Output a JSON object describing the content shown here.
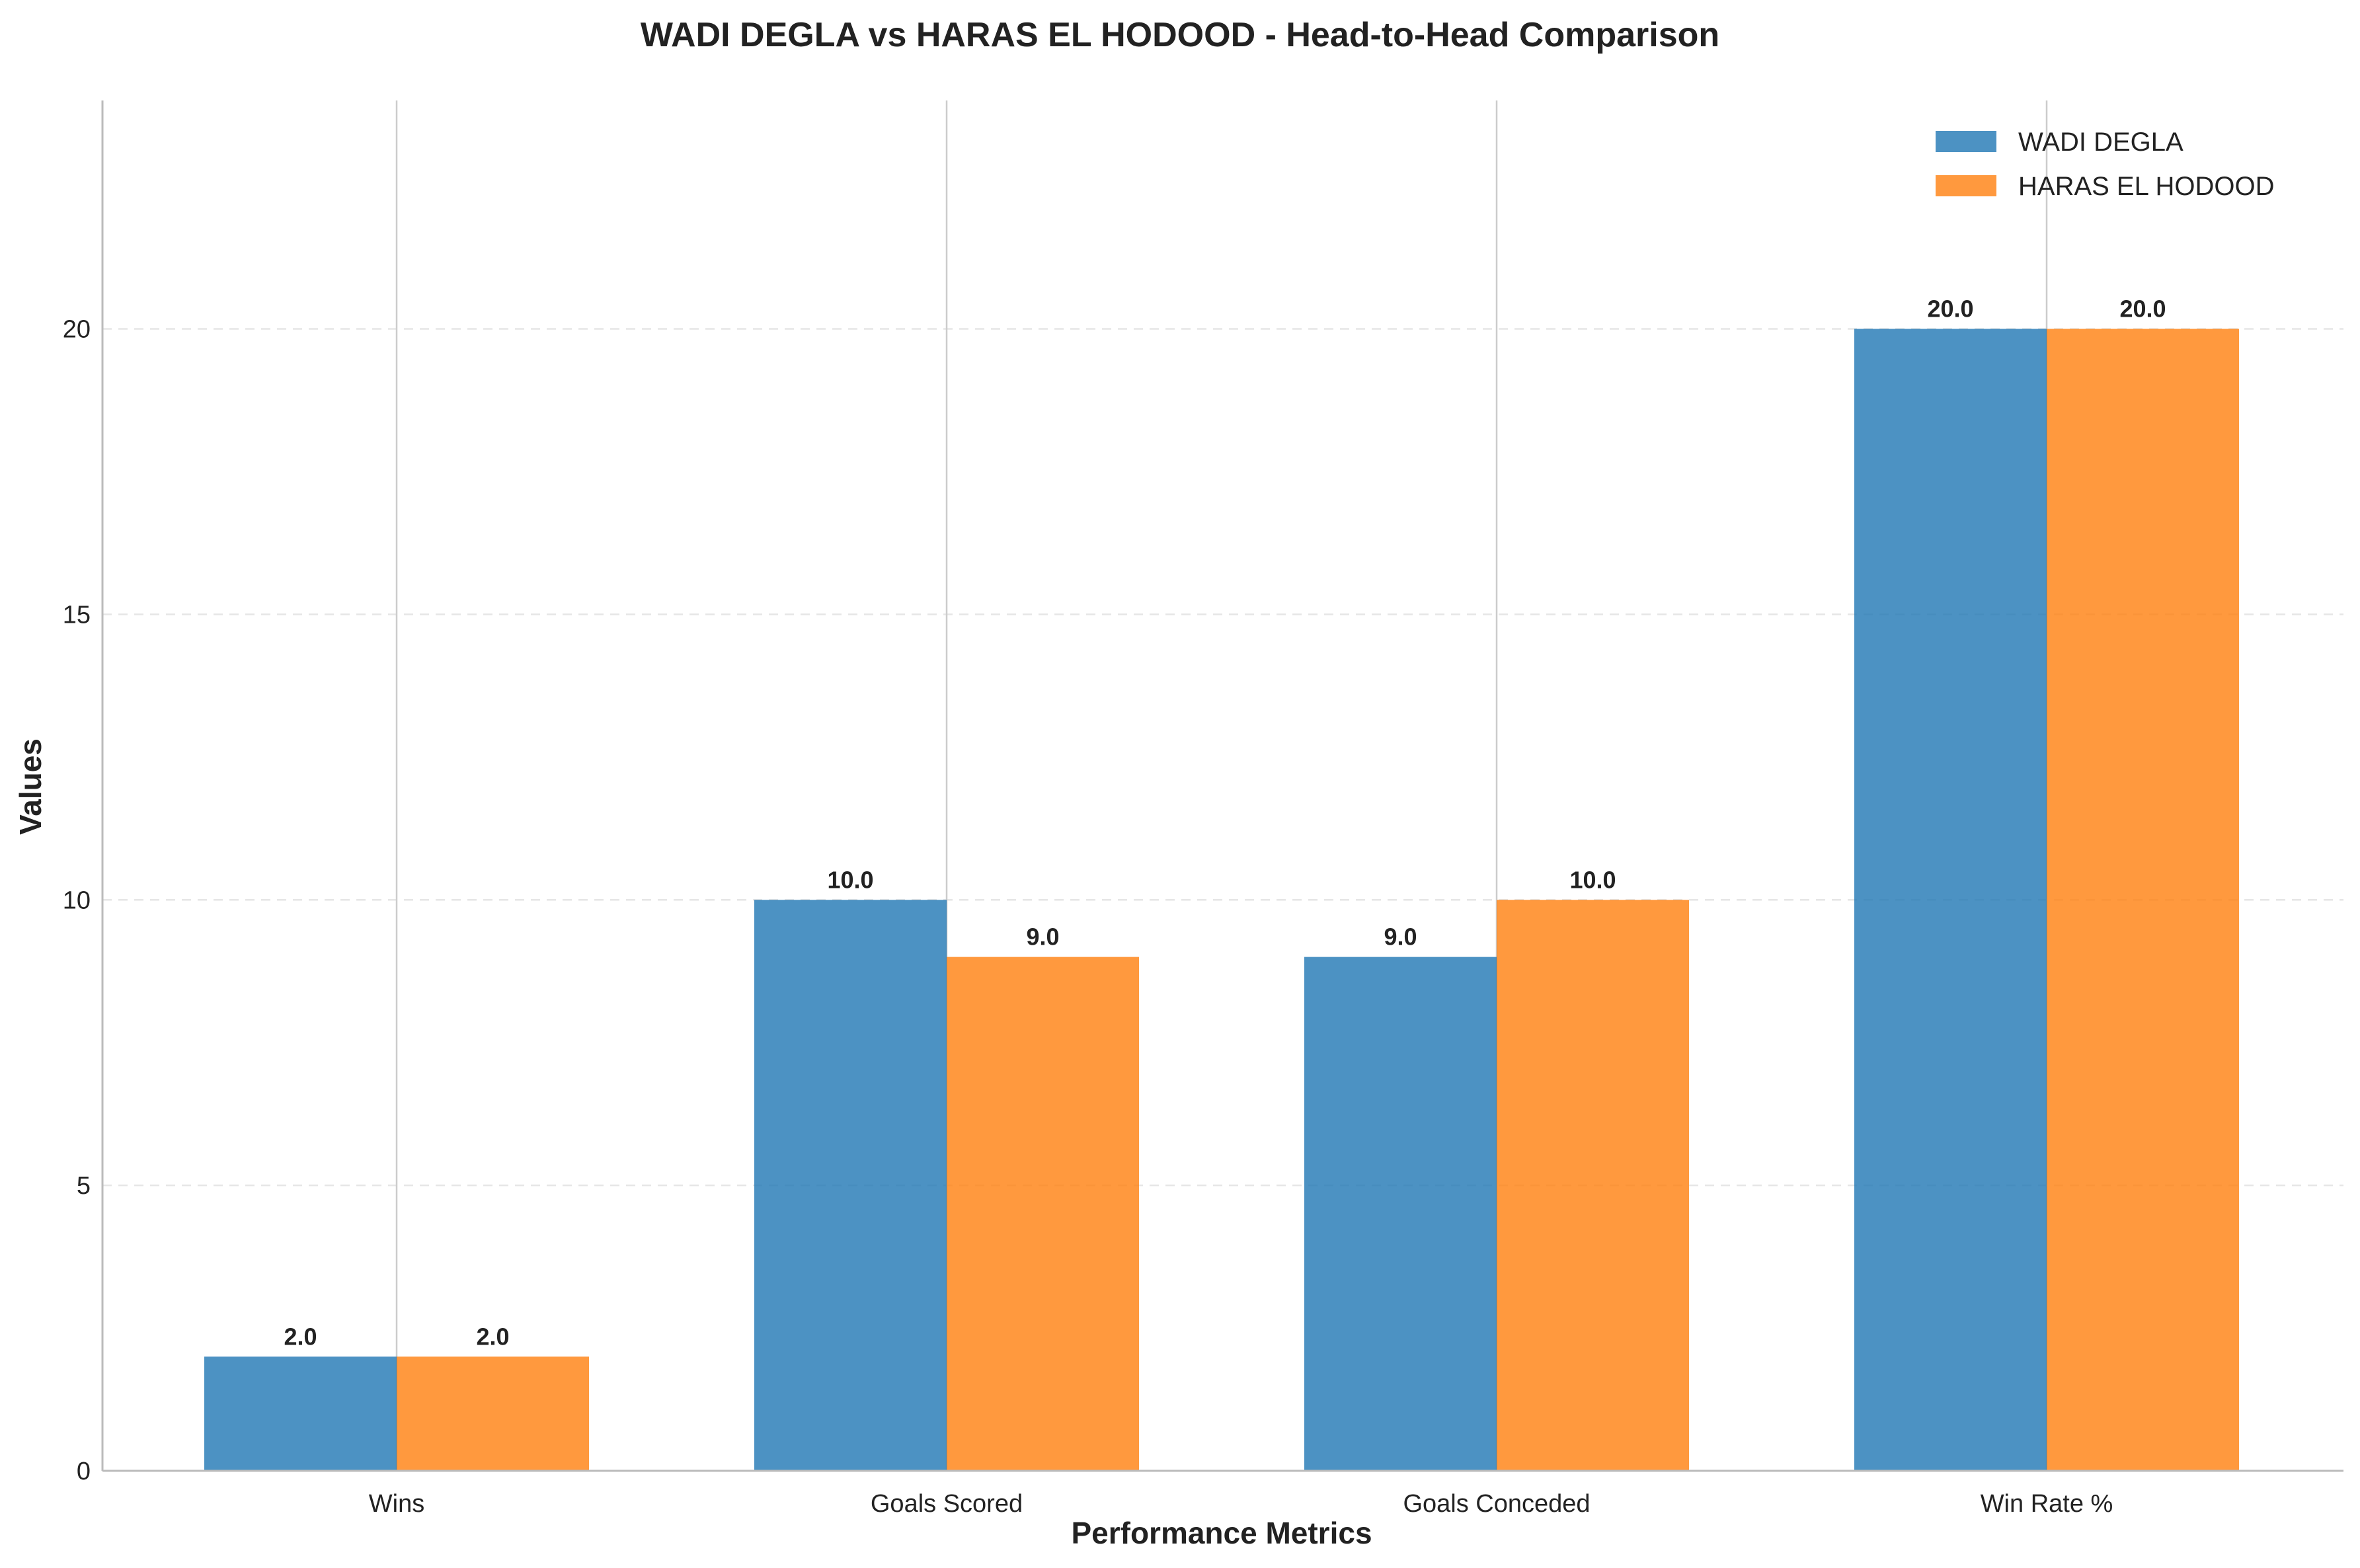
{
  "chart_data": {
    "type": "bar",
    "title": "WADI DEGLA vs HARAS EL HODOOD - Head-to-Head Comparison",
    "xlabel": "Performance Metrics",
    "ylabel": "Values",
    "categories": [
      "Wins",
      "Goals Scored",
      "Goals Conceded",
      "Win Rate %"
    ],
    "series": [
      {
        "name": "WADI DEGLA",
        "values": [
          2.0,
          10.0,
          9.0,
          20.0
        ],
        "color": "#1f77b4"
      },
      {
        "name": "HARAS EL HODOOD",
        "values": [
          2.0,
          9.0,
          10.0,
          20.0
        ],
        "color": "#ff7f0e"
      }
    ],
    "ylim": [
      0,
      24
    ],
    "yticks": [
      0,
      5,
      10,
      15,
      20
    ],
    "value_labels": [
      [
        "2.0",
        "10.0",
        "9.0",
        "20.0"
      ],
      [
        "2.0",
        "9.0",
        "10.0",
        "20.0"
      ]
    ],
    "grid": true,
    "legend_position": "top-right"
  }
}
